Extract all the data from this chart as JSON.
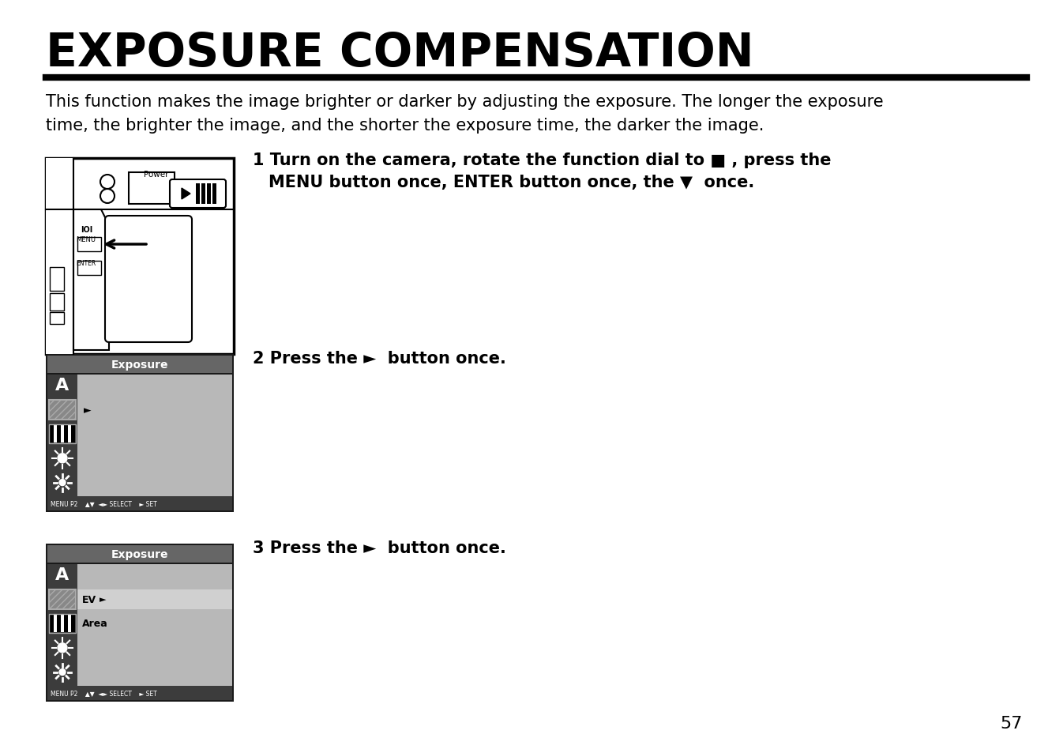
{
  "title": "EXPOSURE COMPENSATION",
  "background_color": "#ffffff",
  "title_color": "#000000",
  "title_fontsize": 42,
  "separator_color": "#000000",
  "body_line1": "This function makes the image brighter or darker by adjusting the exposure. The longer the exposure",
  "body_line2": "time, the brighter the image, and the shorter the exposure time, the darker the image.",
  "body_fontsize": 15,
  "page_number": "57",
  "screen1_title": "Exposure",
  "screen2_title": "Exposure",
  "step1_num": "1",
  "step1_line1": " Turn on the camera, rotate the function dial to ■ , press the",
  "step1_line2": "MENU button once, ENTER button once, the ▼  once.",
  "step2_num": "2",
  "step2_text": " Press the ►  button once.",
  "step3_num": "3",
  "step3_text": " Press the ►  button once.",
  "status_text": "MENU P2    ▲▼  ◄► SELECT    ► SET",
  "icon_dark_bg": "#3c3c3c",
  "icon_area_bg": "#555555",
  "content_gray": "#b8b8b8",
  "header_gray": "#666666"
}
